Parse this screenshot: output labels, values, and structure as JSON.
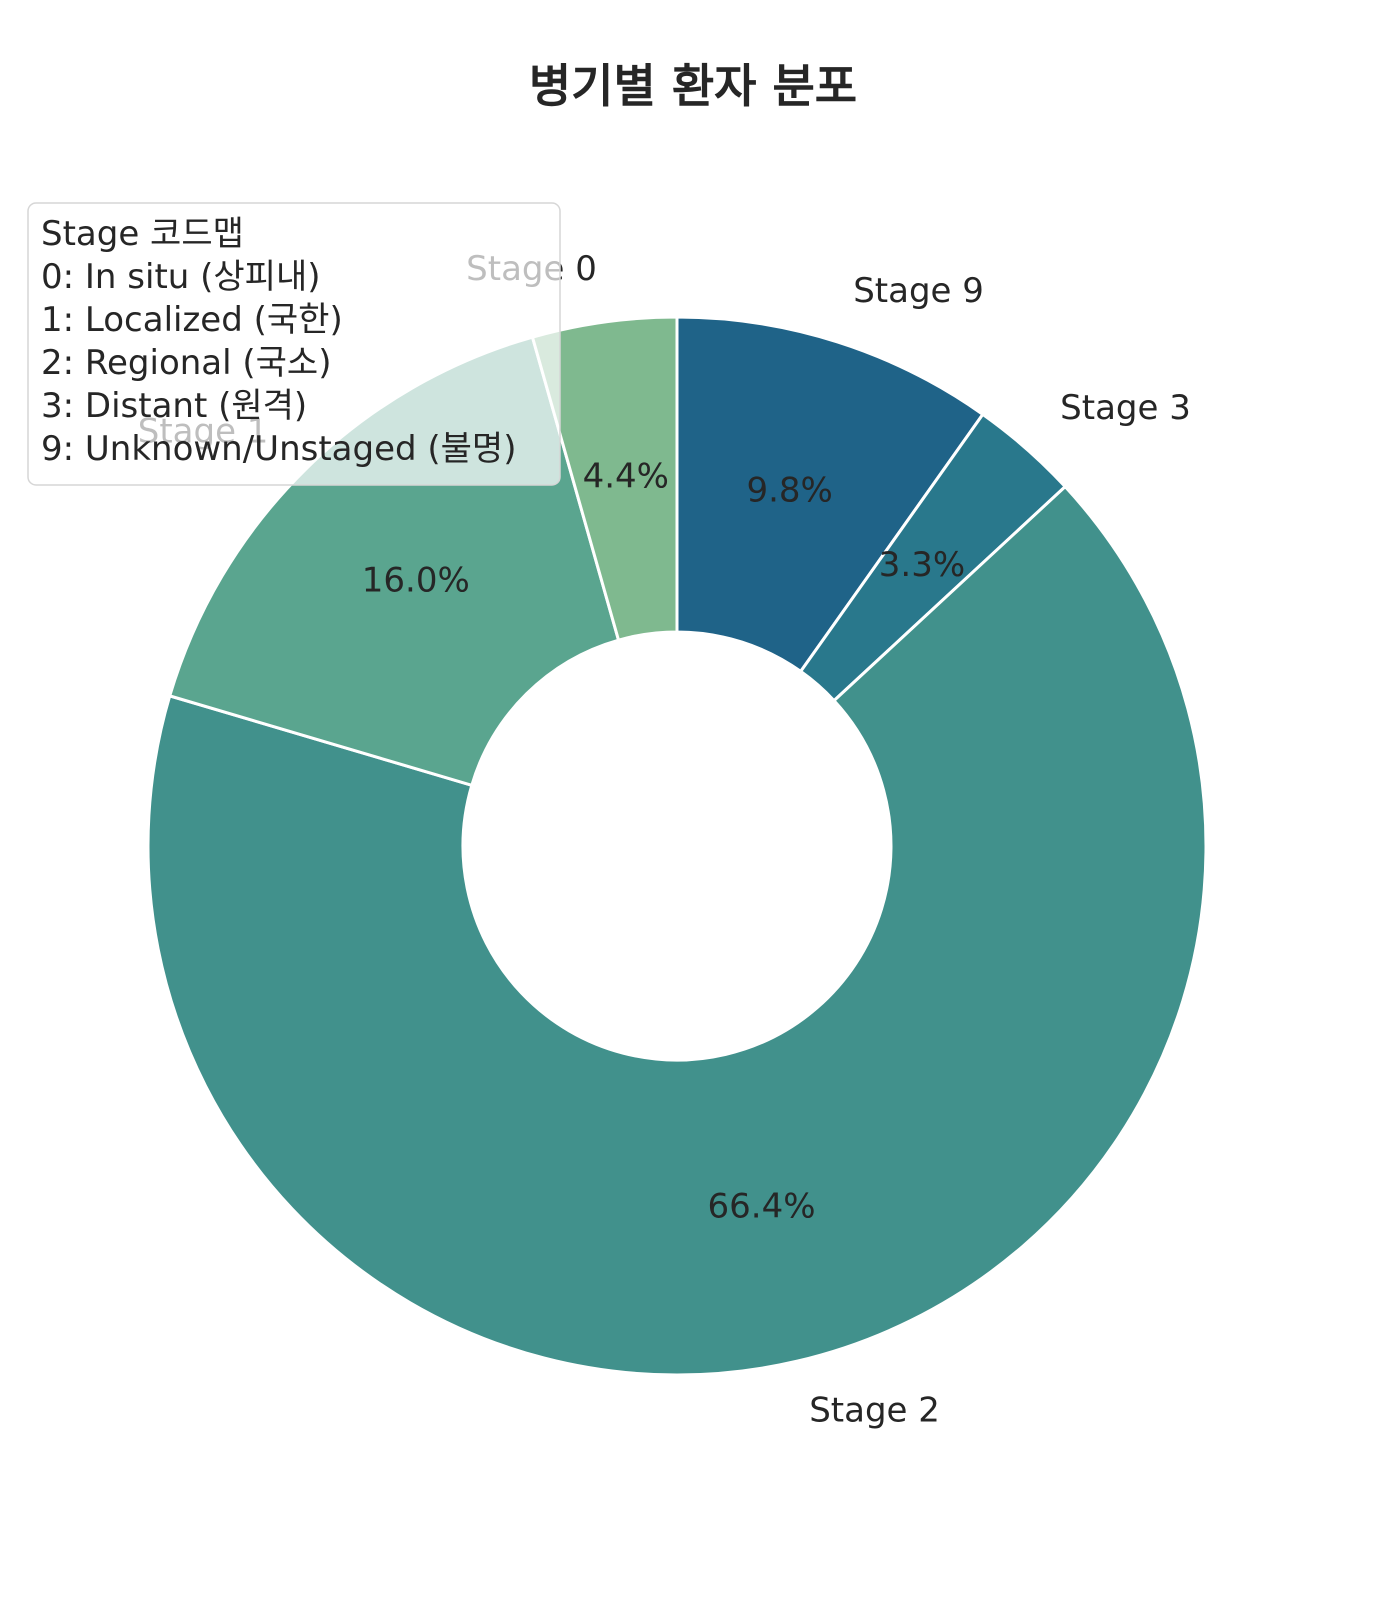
{
  "chart_data": {
    "type": "pie",
    "title": "병기별 환자 분포",
    "donut": true,
    "start": "12 o'clock",
    "direction": "clockwise",
    "categories": [
      "Stage 9",
      "Stage 3",
      "Stage 2",
      "Stage 1",
      "Stage 0"
    ],
    "values": [
      9.8,
      3.3,
      66.4,
      16.0,
      4.4
    ],
    "value_labels": [
      "9.8%",
      "3.3%",
      "66.4%",
      "16.0%",
      "4.4%"
    ],
    "colors": [
      "#1f6388",
      "#29788c",
      "#41918c",
      "#5aa58f",
      "#7fb98f"
    ],
    "legend": {
      "placement": "top-left",
      "title": "Stage 코드맵",
      "lines": [
        "0: In situ (상피내)",
        "1: Localized (국한)",
        "2: Regional (국소)",
        "3: Distant (원격)",
        "9: Unknown/Unstaged (불명)"
      ]
    }
  }
}
